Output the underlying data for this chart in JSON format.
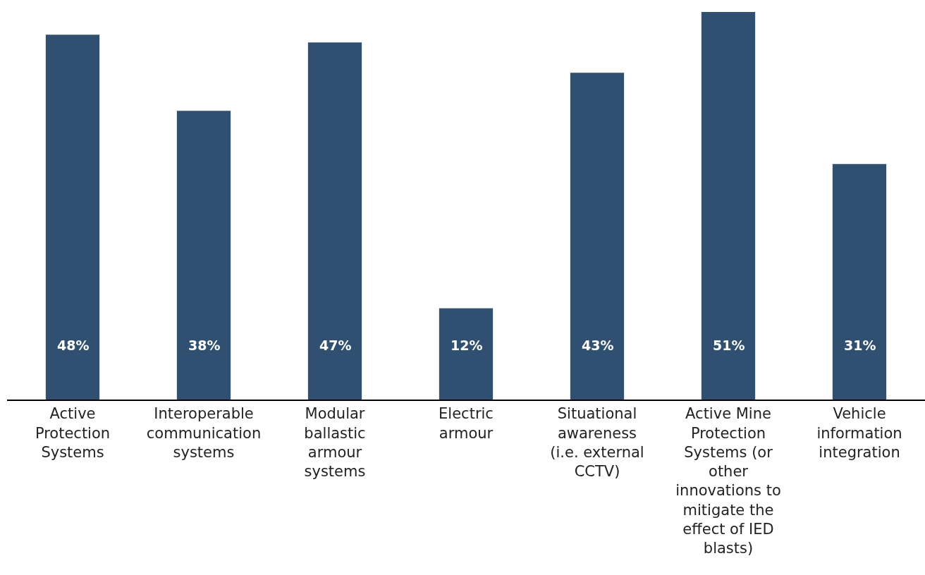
{
  "chart_data": {
    "type": "bar",
    "categories": [
      "Active Protection Systems",
      "Interoperable communication systems",
      "Modular ballastic armour systems",
      "Electric armour",
      "Situational awareness (i.e. external CCTV)",
      "Active Mine Protection Systems (or other innovations to mitigate the effect of IED blasts)",
      "Vehicle information integration"
    ],
    "values": [
      48,
      38,
      47,
      12,
      43,
      51,
      31
    ],
    "value_labels": [
      "48%",
      "38%",
      "47%",
      "12%",
      "43%",
      "51%",
      "31%"
    ],
    "color": "#2f5070",
    "tick_labels": "x"
  }
}
